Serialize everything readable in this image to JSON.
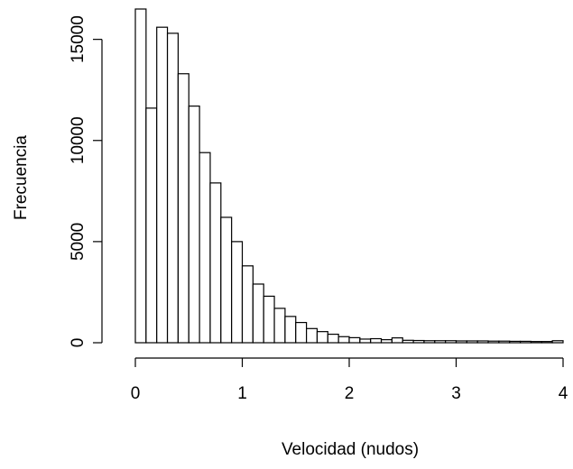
{
  "chart_data": {
    "type": "bar",
    "title": "",
    "xlabel": "Velocidad (nudos)",
    "ylabel": "Frecuencia",
    "xlim": [
      0,
      4
    ],
    "ylim": [
      0,
      16500
    ],
    "bin_width": 0.1,
    "bin_edges_start": 0,
    "x_ticks": [
      0,
      1,
      2,
      3,
      4
    ],
    "x_tick_labels": [
      "0",
      "1",
      "2",
      "3",
      "4"
    ],
    "y_ticks": [
      0,
      5000,
      10000,
      15000
    ],
    "y_tick_labels": [
      "0",
      "5000",
      "10000",
      "15000"
    ],
    "grid": false,
    "legend": "none",
    "values": [
      16500,
      11600,
      15600,
      15300,
      13300,
      11700,
      9400,
      7900,
      6200,
      5000,
      3800,
      2900,
      2300,
      1700,
      1300,
      1000,
      700,
      550,
      420,
      300,
      250,
      180,
      200,
      150,
      240,
      120,
      110,
      100,
      100,
      100,
      90,
      90,
      90,
      80,
      80,
      70,
      70,
      60,
      60,
      100
    ]
  }
}
